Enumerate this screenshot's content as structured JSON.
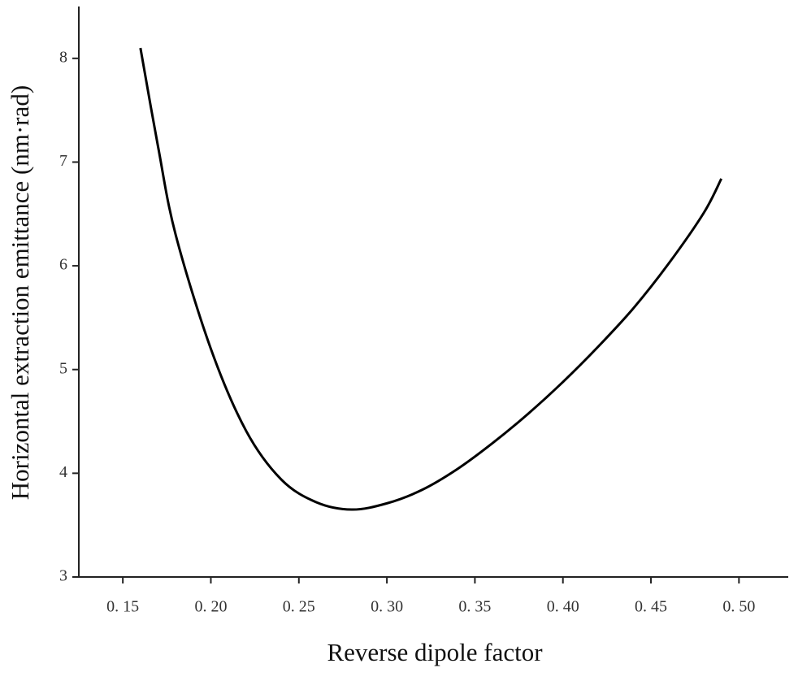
{
  "chart_data": {
    "type": "line",
    "xlabel": "Reverse dipole factor",
    "ylabel": "Horizontal extraction emittance (nm·rad)",
    "x": [
      0.16,
      0.17,
      0.18,
      0.2,
      0.22,
      0.24,
      0.26,
      0.28,
      0.3,
      0.32,
      0.34,
      0.36,
      0.38,
      0.4,
      0.42,
      0.44,
      0.46,
      0.48,
      0.49
    ],
    "series": [
      {
        "color": "#000000",
        "values": [
          8.1,
          7.15,
          6.3,
          5.2,
          4.41,
          3.94,
          3.72,
          3.65,
          3.71,
          3.84,
          4.04,
          4.29,
          4.57,
          4.88,
          5.22,
          5.59,
          6.02,
          6.51,
          6.84
        ]
      }
    ],
    "xlim": [
      0.125,
      0.528
    ],
    "ylim": [
      3,
      8.5
    ],
    "xticks": [
      {
        "value": 0.15,
        "label": "0. 15"
      },
      {
        "value": 0.2,
        "label": "0. 20"
      },
      {
        "value": 0.25,
        "label": "0. 25"
      },
      {
        "value": 0.3,
        "label": "0. 30"
      },
      {
        "value": 0.35,
        "label": "0. 35"
      },
      {
        "value": 0.4,
        "label": "0. 40"
      },
      {
        "value": 0.45,
        "label": "0. 45"
      },
      {
        "value": 0.5,
        "label": "0. 50"
      }
    ],
    "yticks": [
      3,
      4,
      5,
      6,
      7,
      8
    ]
  }
}
